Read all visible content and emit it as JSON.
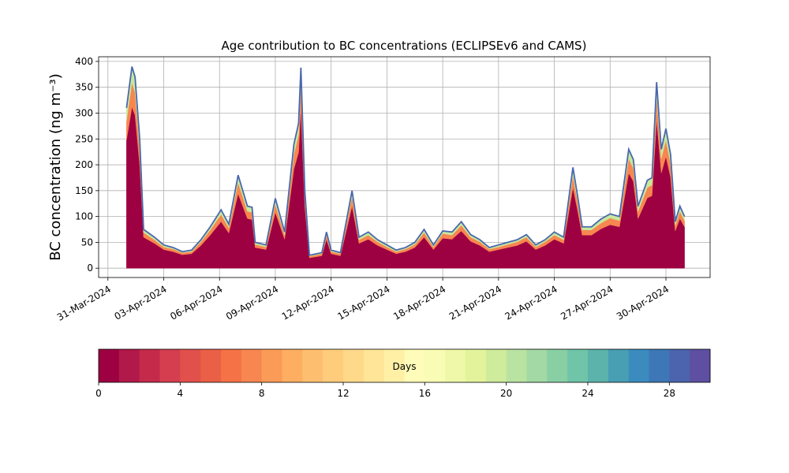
{
  "chart_data": {
    "type": "stacked_area",
    "title": "Age contribution to BC concentrations (ECLIPSEv6 and CAMS)",
    "y_label": "BC concentration (ng m⁻³)",
    "x": [
      "2024-04-01 00:00",
      "2024-04-01 07:00",
      "2024-04-01 11:00",
      "2024-04-01 17:00",
      "2024-04-01 22:00",
      "2024-04-02 12:00",
      "2024-04-03 00:00",
      "2024-04-03 12:00",
      "2024-04-04 00:00",
      "2024-04-04 12:00",
      "2024-04-05 00:00",
      "2024-04-05 12:00",
      "2024-04-06 02:00",
      "2024-04-06 12:00",
      "2024-04-07 00:00",
      "2024-04-07 12:00",
      "2024-04-07 18:00",
      "2024-04-07 22:00",
      "2024-04-08 12:00",
      "2024-04-09 00:00",
      "2024-04-09 12:00",
      "2024-04-10 00:00",
      "2024-04-10 06:00",
      "2024-04-10 09:00",
      "2024-04-10 14:00",
      "2024-04-10 20:00",
      "2024-04-11 12:00",
      "2024-04-11 18:00",
      "2024-04-12 00:00",
      "2024-04-12 12:00",
      "2024-04-13 03:00",
      "2024-04-13 12:00",
      "2024-04-14 00:00",
      "2024-04-14 12:00",
      "2024-04-15 00:00",
      "2024-04-15 12:00",
      "2024-04-16 00:00",
      "2024-04-16 12:00",
      "2024-04-17 00:00",
      "2024-04-17 12:00",
      "2024-04-18 00:00",
      "2024-04-18 12:00",
      "2024-04-19 00:00",
      "2024-04-19 12:00",
      "2024-04-20 00:00",
      "2024-04-20 12:00",
      "2024-04-21 00:00",
      "2024-04-21 12:00",
      "2024-04-22 00:00",
      "2024-04-22 12:00",
      "2024-04-23 00:00",
      "2024-04-23 12:00",
      "2024-04-24 00:00",
      "2024-04-24 12:00",
      "2024-04-25 00:00",
      "2024-04-25 06:00",
      "2024-04-25 12:00",
      "2024-04-26 00:00",
      "2024-04-26 12:00",
      "2024-04-27 00:00",
      "2024-04-27 12:00",
      "2024-04-28 00:00",
      "2024-04-28 06:00",
      "2024-04-28 12:00",
      "2024-04-29 00:00",
      "2024-04-29 06:00",
      "2024-04-29 12:00",
      "2024-04-29 18:00",
      "2024-04-30 00:00",
      "2024-04-30 06:00",
      "2024-04-30 12:00",
      "2024-04-30 18:00",
      "2024-05-01 00:00"
    ],
    "series": [
      {
        "color": "#9e0142",
        "values": [
          248,
          312,
          296,
          200,
          60,
          48,
          36,
          32,
          26,
          28,
          44,
          64,
          90,
          68,
          144,
          96,
          94,
          40,
          36,
          108,
          56,
          192,
          224,
          310,
          120,
          20,
          24,
          56,
          28,
          24,
          120,
          48,
          56,
          44,
          36,
          28,
          32,
          40,
          60,
          36,
          58,
          56,
          72,
          52,
          44,
          32,
          36,
          40,
          44,
          52,
          36,
          44,
          56,
          48,
          156,
          112,
          64,
          64,
          76,
          84,
          80,
          184,
          168,
          96,
          136,
          140,
          288,
          184,
          216,
          176,
          72,
          96,
          80
        ]
      },
      {
        "color": "#f88650",
        "values": [
          37,
          47,
          44,
          30,
          9,
          7,
          5,
          5,
          4,
          4,
          7,
          10,
          14,
          10,
          22,
          14,
          14,
          6,
          5,
          16,
          8,
          29,
          34,
          47,
          18,
          3,
          4,
          8,
          4,
          4,
          18,
          7,
          8,
          7,
          5,
          4,
          5,
          6,
          9,
          5,
          9,
          8,
          11,
          8,
          7,
          5,
          5,
          6,
          7,
          8,
          5,
          7,
          8,
          7,
          23,
          17,
          10,
          10,
          11,
          13,
          12,
          28,
          25,
          14,
          20,
          21,
          43,
          28,
          32,
          26,
          11,
          14,
          12
        ]
      },
      {
        "color": "#c7e89d",
        "values": [
          25,
          31,
          30,
          20,
          6,
          5,
          4,
          3,
          2,
          3,
          4,
          6,
          9,
          7,
          14,
          10,
          10,
          4,
          4,
          11,
          6,
          19,
          22,
          31,
          12,
          2,
          2,
          6,
          3,
          2,
          12,
          5,
          6,
          4,
          4,
          3,
          3,
          4,
          6,
          4,
          5,
          6,
          7,
          5,
          4,
          3,
          4,
          4,
          4,
          5,
          4,
          4,
          6,
          5,
          16,
          11,
          6,
          6,
          8,
          8,
          8,
          18,
          17,
          10,
          14,
          14,
          29,
          18,
          22,
          18,
          7,
          10,
          8
        ]
      }
    ],
    "edge_color": "#4a68ad",
    "xlim": [
      "2024-03-30 12:00",
      "2024-05-02 09:00"
    ],
    "xticks": [
      {
        "value": "2024-03-31",
        "label": "31-Mar-2024"
      },
      {
        "value": "2024-04-03",
        "label": "03-Apr-2024"
      },
      {
        "value": "2024-04-06",
        "label": "06-Apr-2024"
      },
      {
        "value": "2024-04-09",
        "label": "09-Apr-2024"
      },
      {
        "value": "2024-04-12",
        "label": "12-Apr-2024"
      },
      {
        "value": "2024-04-15",
        "label": "15-Apr-2024"
      },
      {
        "value": "2024-04-18",
        "label": "18-Apr-2024"
      },
      {
        "value": "2024-04-21",
        "label": "21-Apr-2024"
      },
      {
        "value": "2024-04-24",
        "label": "24-Apr-2024"
      },
      {
        "value": "2024-04-27",
        "label": "27-Apr-2024"
      },
      {
        "value": "2024-04-30",
        "label": "30-Apr-2024"
      }
    ],
    "ylim": [
      -18,
      409
    ],
    "yticks": [
      0,
      50,
      100,
      150,
      200,
      250,
      300,
      350,
      400
    ],
    "grid": true,
    "colorbar": {
      "label": "Days",
      "lim": [
        0,
        30
      ],
      "ticks": [
        0,
        4,
        8,
        12,
        16,
        20,
        24,
        28
      ],
      "colors": [
        "#9e0142",
        "#b1194a",
        "#c52a4b",
        "#d53e4f",
        "#e1504a",
        "#ea6047",
        "#f47245",
        "#f88650",
        "#fa9b58",
        "#fdae61",
        "#fdbf6f",
        "#fecc7b",
        "#fed989",
        "#fee597",
        "#fff0a6",
        "#fffbb8",
        "#f8fcb4",
        "#eef8a8",
        "#e2f39c",
        "#cfeb9c",
        "#b9e3a0",
        "#a2d9a4",
        "#88cfa4",
        "#70c4a8",
        "#5bb3ab",
        "#489fb4",
        "#3b8bbf",
        "#3d77b7",
        "#4b64ad",
        "#5e4fa2"
      ]
    }
  }
}
